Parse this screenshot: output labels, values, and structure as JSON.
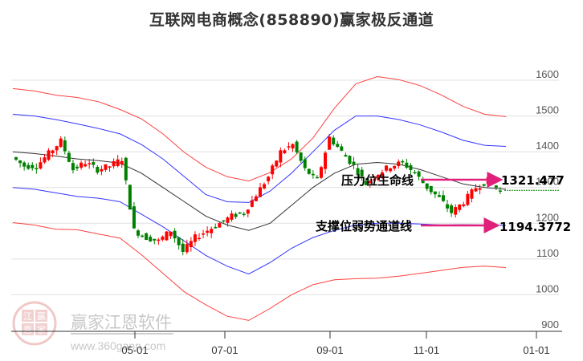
{
  "title": "互联网电商概念(858890)赢家极反通道",
  "watermark": {
    "brand": "赢家江恩软件",
    "url": "www.360gann.com",
    "seal": [
      "江",
      "赢",
      "恩",
      "家"
    ]
  },
  "annotations": {
    "resistance_label": "压力位生命线",
    "resistance_value": "1321.477",
    "support_label": "支撑位弱势通道线",
    "support_value": "1194.3772"
  },
  "colors": {
    "up": "#ff0000",
    "down": "#008000",
    "outer_band": "#ff4040",
    "inner_band": "#3333ff",
    "mid_line": "#333333",
    "arrow": "#e0207a",
    "dotted": "#008000"
  },
  "chart_data": {
    "type": "candlestick",
    "title": "互联网电商概念(858890)赢家极反通道",
    "xlabel": "",
    "ylabel": "",
    "ylim": [
      900,
      1650
    ],
    "y_ticks": [
      1600,
      1500,
      1400,
      1300,
      1200,
      1100,
      1000,
      900
    ],
    "x_ticks": [
      "05-01",
      "07-01",
      "09-01",
      "11-01",
      "01-01"
    ],
    "grid": true,
    "series": [
      {
        "name": "outer_upper_red",
        "values": [
          1575,
          1570,
          1560,
          1550,
          1540,
          1520,
          1490,
          1450,
          1400,
          1355,
          1330,
          1320,
          1340,
          1380,
          1440,
          1520,
          1590,
          1612,
          1600,
          1585,
          1560,
          1525,
          1505,
          1500
        ]
      },
      {
        "name": "inner_upper_blue",
        "values": [
          1505,
          1500,
          1490,
          1478,
          1465,
          1450,
          1420,
          1380,
          1330,
          1280,
          1260,
          1258,
          1290,
          1340,
          1400,
          1460,
          1500,
          1500,
          1490,
          1475,
          1455,
          1432,
          1418,
          1415
        ]
      },
      {
        "name": "middle_black",
        "values": [
          1400,
          1395,
          1388,
          1380,
          1375,
          1368,
          1340,
          1300,
          1260,
          1220,
          1195,
          1180,
          1200,
          1250,
          1300,
          1340,
          1365,
          1370,
          1365,
          1350,
          1330,
          1310,
          1300,
          1295
        ]
      },
      {
        "name": "inner_lower_blue",
        "values": [
          1300,
          1295,
          1285,
          1275,
          1270,
          1260,
          1225,
          1190,
          1150,
          1110,
          1080,
          1058,
          1090,
          1130,
          1160,
          1180,
          1195,
          1200,
          1200,
          1198,
          1195,
          1196,
          1195,
          1194
        ]
      },
      {
        "name": "outer_lower_red",
        "values": [
          1200,
          1195,
          1185,
          1180,
          1170,
          1160,
          1110,
          1060,
          1010,
          970,
          940,
          930,
          960,
          1000,
          1030,
          1040,
          1045,
          1048,
          1050,
          1060,
          1070,
          1075,
          1080,
          1078
        ]
      }
    ],
    "candles_close_approx": [
      1385,
      1360,
      1360,
      1395,
      1430,
      1350,
      1370,
      1350,
      1360,
      1380,
      1180,
      1160,
      1150,
      1180,
      1120,
      1160,
      1180,
      1200,
      1220,
      1230,
      1280,
      1330,
      1400,
      1420,
      1350,
      1320,
      1440,
      1400,
      1360,
      1310,
      1340,
      1360,
      1370,
      1340,
      1300,
      1270,
      1230,
      1260,
      1300,
      1320,
      1290
    ],
    "levels": [
      {
        "name": "压力位生命线",
        "value": 1321.477
      },
      {
        "name": "支撑位弱势通道线",
        "value": 1194.3772
      },
      {
        "name": "last_close_dotted",
        "value": 1292
      }
    ]
  }
}
